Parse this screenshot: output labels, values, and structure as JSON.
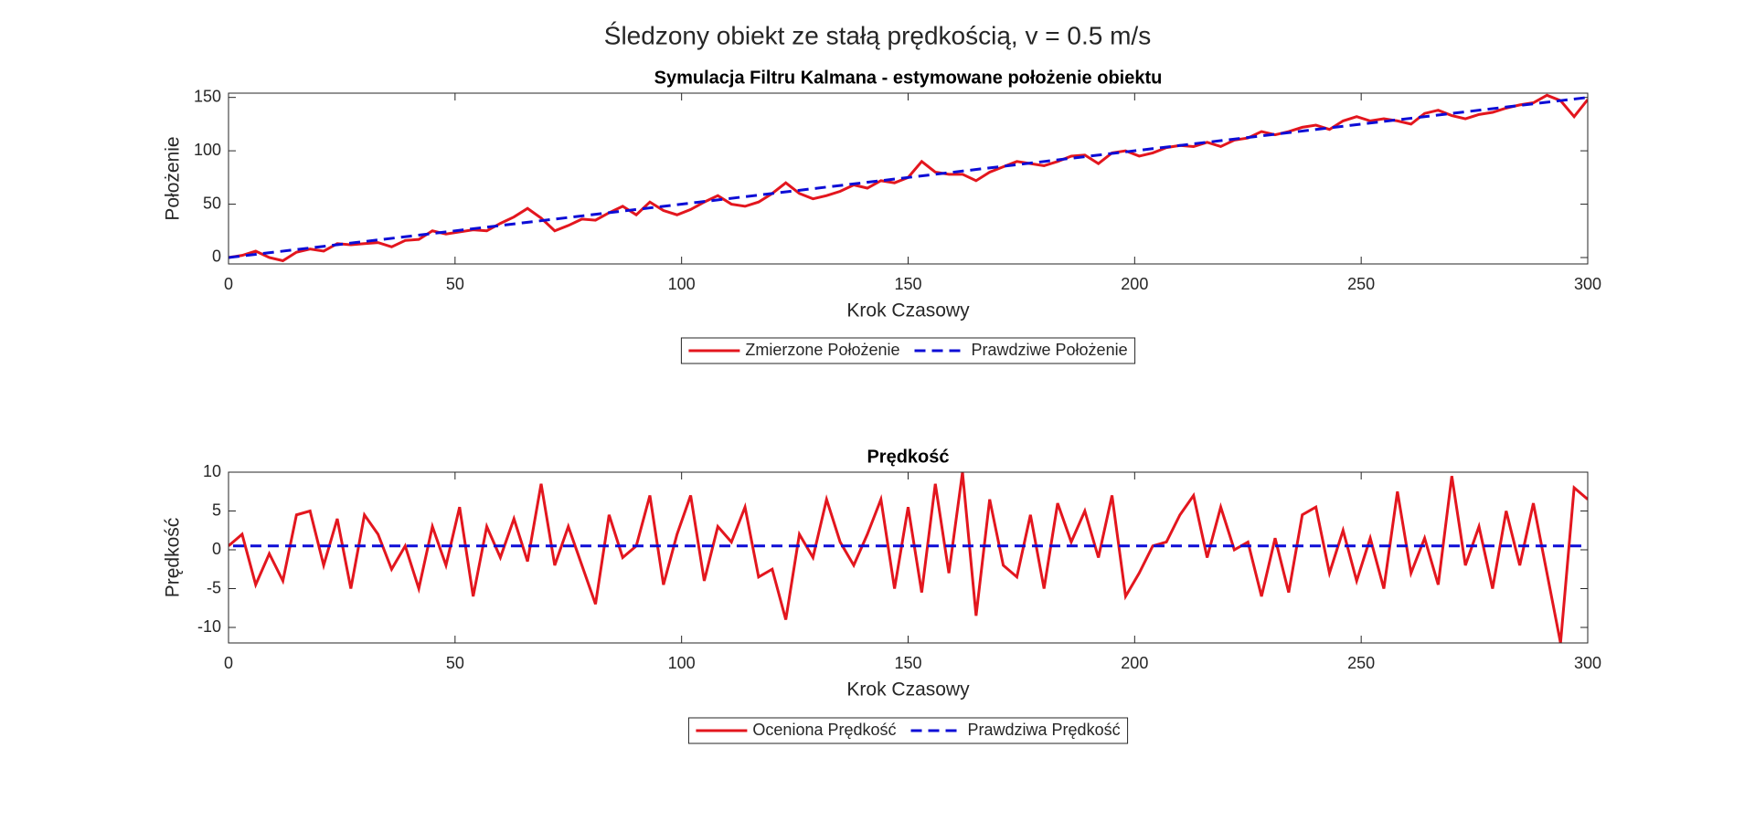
{
  "title": "Śledzony obiekt ze stałą prędkością, v = 0.5 m/s",
  "chart_data": [
    {
      "type": "line",
      "title": "Symulacja Filtru Kalmana - estymowane położenie obiektu",
      "x_label": "Krok Czasowy",
      "y_label": "Położenie",
      "xlim": [
        0,
        300
      ],
      "xticks": [
        0,
        50,
        100,
        150,
        200,
        250,
        300
      ],
      "ylim": [
        -6,
        154
      ],
      "yticks": [
        0,
        50,
        100,
        150
      ],
      "legend": "bottom-outside",
      "series": [
        {
          "name": "Zmierzone Położenie",
          "color": "#e3161e",
          "dash": false,
          "x": [
            0,
            3,
            6,
            9,
            12,
            15,
            18,
            21,
            24,
            27,
            30,
            33,
            36,
            39,
            42,
            45,
            48,
            51,
            54,
            57,
            60,
            63,
            66,
            69,
            72,
            75,
            78,
            81,
            84,
            87,
            90,
            93,
            96,
            99,
            102,
            105,
            108,
            111,
            114,
            117,
            120,
            123,
            126,
            129,
            132,
            135,
            138,
            141,
            144,
            147,
            150,
            153,
            156,
            159,
            162,
            165,
            168,
            171,
            174,
            177,
            180,
            183,
            186,
            189,
            192,
            195,
            198,
            201,
            204,
            207,
            210,
            213,
            216,
            219,
            222,
            225,
            228,
            231,
            234,
            237,
            240,
            243,
            246,
            249,
            252,
            255,
            258,
            261,
            264,
            267,
            270,
            273,
            276,
            279,
            282,
            285,
            288,
            291,
            294,
            297,
            300
          ],
          "values": [
            0,
            2,
            6,
            0,
            -3,
            5,
            8,
            6,
            13,
            12,
            13,
            14,
            10,
            16,
            17,
            25,
            22,
            24,
            26,
            25,
            32,
            38,
            46,
            37,
            25,
            30,
            36,
            35,
            42,
            48,
            40,
            52,
            44,
            40,
            45,
            52,
            58,
            50,
            48,
            52,
            60,
            70,
            60,
            55,
            58,
            62,
            68,
            65,
            72,
            70,
            75,
            90,
            80,
            78,
            78,
            72,
            80,
            85,
            90,
            88,
            86,
            90,
            95,
            96,
            88,
            98,
            100,
            95,
            98,
            103,
            105,
            104,
            108,
            104,
            110,
            112,
            118,
            115,
            118,
            122,
            124,
            120,
            128,
            132,
            128,
            130,
            128,
            125,
            135,
            138,
            133,
            130,
            134,
            136,
            140,
            143,
            145,
            152,
            147,
            132,
            148
          ]
        },
        {
          "name": "Prawdziwe Położenie",
          "color": "#0d0dd6",
          "dash": true,
          "x": [
            0,
            300
          ],
          "values": [
            0,
            150
          ]
        }
      ]
    },
    {
      "type": "line",
      "title": "Prędkość",
      "x_label": "Krok Czasowy",
      "y_label": "Prędkość",
      "xlim": [
        0,
        300
      ],
      "xticks": [
        0,
        50,
        100,
        150,
        200,
        250,
        300
      ],
      "ylim": [
        -12,
        10
      ],
      "yticks": [
        -10,
        -5,
        0,
        5,
        10
      ],
      "legend": "bottom-outside",
      "series": [
        {
          "name": "Oceniona Prędkość",
          "color": "#e3161e",
          "dash": false,
          "x": [
            0,
            3,
            6,
            9,
            12,
            15,
            18,
            21,
            24,
            27,
            30,
            33,
            36,
            39,
            42,
            45,
            48,
            51,
            54,
            57,
            60,
            63,
            66,
            69,
            72,
            75,
            78,
            81,
            84,
            87,
            90,
            93,
            96,
            99,
            102,
            105,
            108,
            111,
            114,
            117,
            120,
            123,
            126,
            129,
            132,
            135,
            138,
            141,
            144,
            147,
            150,
            153,
            156,
            159,
            162,
            165,
            168,
            171,
            174,
            177,
            180,
            183,
            186,
            189,
            192,
            195,
            198,
            201,
            204,
            207,
            210,
            213,
            216,
            219,
            222,
            225,
            228,
            231,
            234,
            237,
            240,
            243,
            246,
            249,
            252,
            255,
            258,
            261,
            264,
            267,
            270,
            273,
            276,
            279,
            282,
            285,
            288,
            291,
            294,
            297,
            300
          ],
          "values": [
            0.5,
            2,
            -4.5,
            -0.5,
            -4,
            4.5,
            5,
            -2,
            4,
            -5,
            4.5,
            2,
            -2.5,
            0.5,
            -5,
            3,
            -2,
            5.5,
            -6,
            3,
            -1,
            4,
            -1.5,
            8.5,
            -2,
            3,
            -2,
            -7,
            4.5,
            -1,
            0.5,
            7,
            -4.5,
            2,
            7,
            -4,
            3,
            1,
            5.5,
            -3.5,
            -2.5,
            -9,
            2,
            -1,
            6.5,
            1,
            -2,
            2,
            6.5,
            -5,
            5.5,
            -5.5,
            8.5,
            -3,
            10,
            -8.5,
            6.5,
            -2,
            -3.5,
            4.5,
            -5,
            6,
            1,
            5,
            -1,
            7,
            -6,
            -3,
            0.5,
            1,
            4.5,
            7,
            -1,
            5.5,
            0,
            1,
            -6,
            1.5,
            -5.5,
            4.5,
            5.5,
            -3,
            2.5,
            -4,
            1.5,
            -5,
            7.5,
            -3,
            1.5,
            -4.5,
            9.5,
            -2,
            3,
            -5,
            5,
            -2,
            6,
            -3,
            -12,
            8,
            6.5
          ]
        },
        {
          "name": "Prawdziwa Prędkość",
          "color": "#0d0dd6",
          "dash": true,
          "x": [
            1,
            300
          ],
          "values": [
            0.5,
            0.5
          ]
        }
      ]
    }
  ]
}
